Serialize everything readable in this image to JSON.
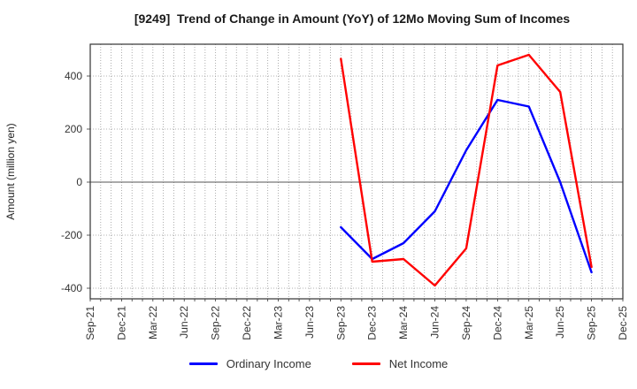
{
  "chart_data": {
    "type": "line",
    "title": "[9249]  Trend of Change in Amount (YoY) of 12Mo Moving Sum of Incomes",
    "xlabel": "",
    "ylabel": "Amount (million yen)",
    "categories": [
      "Sep-21",
      "Dec-21",
      "Mar-22",
      "Jun-22",
      "Sep-22",
      "Dec-22",
      "Mar-23",
      "Jun-23",
      "Sep-23",
      "Dec-23",
      "Mar-24",
      "Jun-24",
      "Sep-24",
      "Dec-24",
      "Mar-25",
      "Jun-25",
      "Sep-25",
      "Dec-25"
    ],
    "y_ticks": [
      -400,
      -200,
      0,
      200,
      400
    ],
    "ylim": [
      -440,
      520
    ],
    "grid": "dotted gray; vertical line every month, horizontal every 200; zero line solid",
    "legend_position": "bottom-center",
    "series": [
      {
        "name": "Ordinary Income",
        "color": "#0000ff",
        "values": [
          null,
          null,
          null,
          null,
          null,
          null,
          null,
          null,
          -170,
          -290,
          -230,
          -110,
          120,
          310,
          285,
          0,
          -340,
          null
        ]
      },
      {
        "name": "Net Income",
        "color": "#ff0000",
        "values": [
          null,
          null,
          null,
          null,
          null,
          null,
          null,
          null,
          465,
          -300,
          -290,
          -390,
          -250,
          440,
          480,
          340,
          -320,
          null
        ]
      }
    ]
  },
  "style": {
    "axis_border_color": "#333333",
    "grid_color": "#999999",
    "zero_line_color": "#555555",
    "tick_label_color": "#333333"
  }
}
